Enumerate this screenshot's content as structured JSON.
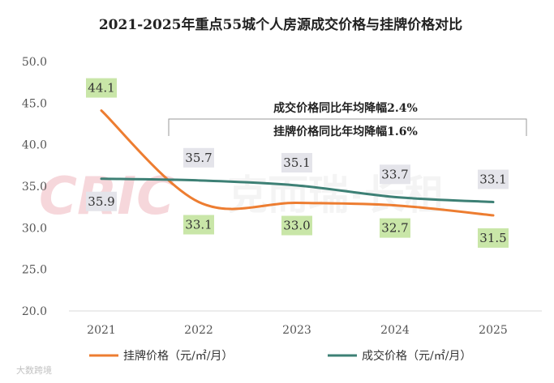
{
  "chart_data": {
    "type": "line",
    "title": "2021-2025年重点55城个人房源成交价格与挂牌价格对比",
    "categories": [
      "2021",
      "2022",
      "2023",
      "2024",
      "2025"
    ],
    "ylim": [
      20.0,
      50.0
    ],
    "yticks": [
      "20.0",
      "25.0",
      "30.0",
      "35.0",
      "40.0",
      "45.0",
      "50.0"
    ],
    "grid": false,
    "legend_position": "bottom",
    "series": [
      {
        "name": "挂牌价格（元/㎡/月）",
        "values": [
          44.1,
          33.1,
          33.0,
          32.7,
          31.5
        ],
        "color": "#ED7D31",
        "label_bg": "#C9E6A8"
      },
      {
        "name": "成交价格（元/㎡/月）",
        "values": [
          35.9,
          35.7,
          35.1,
          33.7,
          33.1
        ],
        "color": "#3D8075",
        "label_bg": "#E4E4EA"
      }
    ],
    "annotations": [
      "成交价格同比年均降幅2.4%",
      "挂牌价格同比年均降幅1.6%"
    ]
  },
  "watermark": {
    "logo_text": "CRIC",
    "brand_text": "克而瑞·长租",
    "source_text": "大数跨境"
  }
}
